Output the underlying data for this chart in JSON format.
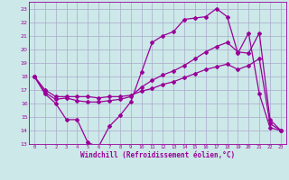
{
  "bg_color": "#cce8e8",
  "grid_color": "#aaaacc",
  "line_color": "#990099",
  "marker": "D",
  "markersize": 2.0,
  "linewidth": 0.9,
  "xlabel": "Windchill (Refroidissement éolien,°C)",
  "xlabel_color": "#990099",
  "xlabel_fontsize": 5.5,
  "xlim": [
    -0.5,
    23.5
  ],
  "ylim": [
    13,
    23.5
  ],
  "xticks": [
    0,
    1,
    2,
    3,
    4,
    5,
    6,
    7,
    8,
    9,
    10,
    11,
    12,
    13,
    14,
    15,
    16,
    17,
    18,
    19,
    20,
    21,
    22,
    23
  ],
  "yticks": [
    13,
    14,
    15,
    16,
    17,
    18,
    19,
    20,
    21,
    22,
    23
  ],
  "series1_x": [
    0,
    1,
    2,
    3,
    4,
    5,
    6,
    7,
    8,
    9,
    10,
    11,
    12,
    13,
    14,
    15,
    16,
    17,
    18,
    19,
    20,
    21,
    22,
    23
  ],
  "series1_y": [
    18.0,
    16.7,
    16.0,
    14.8,
    14.8,
    13.1,
    12.8,
    14.3,
    15.1,
    16.1,
    18.3,
    20.5,
    21.0,
    21.3,
    22.2,
    22.3,
    22.4,
    23.0,
    22.4,
    19.7,
    21.2,
    16.7,
    14.2,
    14.0
  ],
  "series2_x": [
    0,
    1,
    2,
    3,
    4,
    5,
    6,
    7,
    8,
    9,
    10,
    11,
    12,
    13,
    14,
    15,
    16,
    17,
    18,
    19,
    20,
    21,
    22,
    23
  ],
  "series2_y": [
    18.0,
    16.8,
    16.3,
    16.4,
    16.2,
    16.1,
    16.1,
    16.2,
    16.3,
    16.5,
    17.2,
    17.7,
    18.1,
    18.4,
    18.8,
    19.3,
    19.8,
    20.2,
    20.5,
    19.8,
    19.7,
    21.2,
    14.8,
    14.0
  ],
  "series3_x": [
    0,
    1,
    2,
    3,
    4,
    5,
    6,
    7,
    8,
    9,
    10,
    11,
    12,
    13,
    14,
    15,
    16,
    17,
    18,
    19,
    20,
    21,
    22,
    23
  ],
  "series3_y": [
    18.0,
    17.0,
    16.5,
    16.5,
    16.5,
    16.5,
    16.4,
    16.5,
    16.5,
    16.6,
    16.9,
    17.1,
    17.4,
    17.6,
    17.9,
    18.2,
    18.5,
    18.7,
    18.9,
    18.5,
    18.8,
    19.3,
    14.5,
    14.0
  ]
}
